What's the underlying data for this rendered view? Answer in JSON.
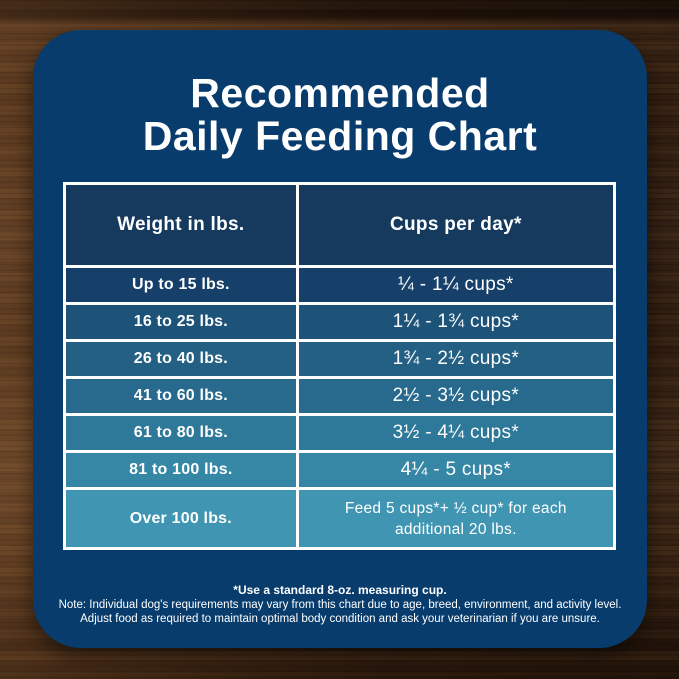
{
  "colors": {
    "card_bg": "#073c6d",
    "header_bg": "#153a5d",
    "row_colors": [
      "#164069",
      "#1d5279",
      "#236083",
      "#276a8d",
      "#2e7899",
      "#3686a5",
      "#4096b2"
    ],
    "table_border": "#ffffff",
    "text": "#ffffff"
  },
  "title": {
    "line1": "Recommended",
    "line2": "Daily Feeding Chart"
  },
  "table": {
    "headers": [
      "Weight in lbs.",
      "Cups per day*"
    ],
    "rows": [
      {
        "weight": "Up to 15 lbs.",
        "cups": "¼ - 1¼ cups*"
      },
      {
        "weight": "16 to 25 lbs.",
        "cups": "1¼ - 1¾ cups*"
      },
      {
        "weight": "26 to 40 lbs.",
        "cups": "1¾ - 2½ cups*"
      },
      {
        "weight": "41 to 60 lbs.",
        "cups": "2½ - 3½ cups*"
      },
      {
        "weight": "61 to 80 lbs.",
        "cups": "3½ - 4¼ cups*"
      },
      {
        "weight": "81 to 100 lbs.",
        "cups": "4¼ - 5 cups*"
      },
      {
        "weight": "Over 100 lbs.",
        "cups": "Feed 5 cups*+ ½ cup* for each additional 20 lbs."
      }
    ]
  },
  "notes": {
    "line1": "*Use a standard 8-oz. measuring cup.",
    "line2": "Note: Individual dog's requirements may vary from this chart due to age, breed, environment, and activity level.",
    "line3": "Adjust food as required to maintain optimal body condition and ask your veterinarian if you are unsure."
  },
  "chart_data": {
    "type": "table",
    "title": "Recommended Daily Feeding Chart",
    "columns": [
      "Weight in lbs.",
      "Cups per day*"
    ],
    "rows": [
      [
        "Up to 15 lbs.",
        "¼ - 1¼ cups*"
      ],
      [
        "16 to 25 lbs.",
        "1¼ - 1¾ cups*"
      ],
      [
        "26 to 40 lbs.",
        "1¾ - 2½ cups*"
      ],
      [
        "41 to 60 lbs.",
        "2½ - 3½ cups*"
      ],
      [
        "61 to 80 lbs.",
        "3½ - 4¼ cups*"
      ],
      [
        "81 to 100 lbs.",
        "4¼ - 5 cups*"
      ],
      [
        "Over 100 lbs.",
        "Feed 5 cups*+ ½ cup* for each additional 20 lbs."
      ]
    ],
    "footnotes": [
      "*Use a standard 8-oz. measuring cup.",
      "Note: Individual dog's requirements may vary from this chart due to age, breed, environment, and activity level.",
      "Adjust food as required to maintain optimal body condition and ask your veterinarian if you are unsure."
    ],
    "layout_hints": {
      "row_background": "dark navy fading to light teal-blue top-to-bottom",
      "grid": "white 3px borders",
      "text_color": "#ffffff"
    }
  }
}
